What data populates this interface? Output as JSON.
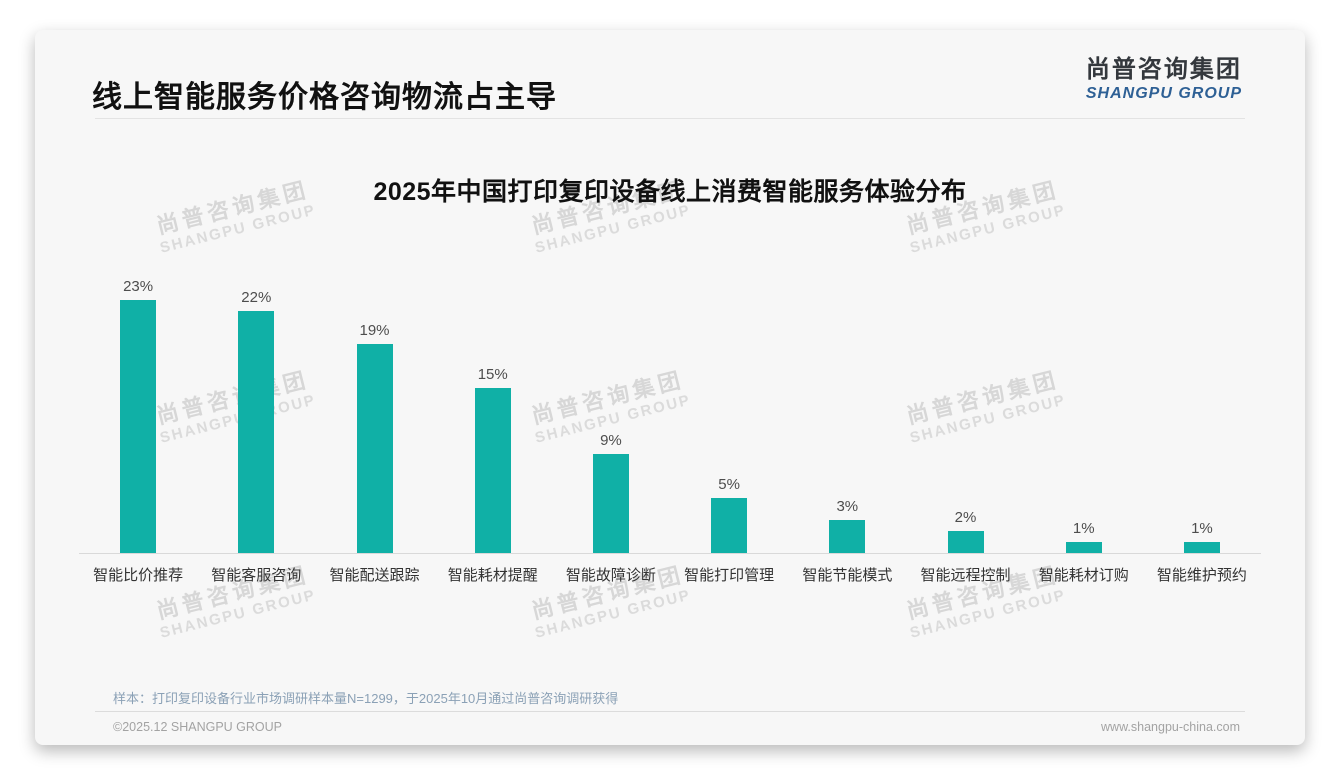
{
  "header": {
    "title": "线上智能服务价格咨询物流占主导"
  },
  "logo": {
    "cn": "尚普咨询集团",
    "en": "SHANGPU GROUP"
  },
  "watermark": {
    "cn": "尚普咨询集团",
    "en": "SHANGPU GROUP"
  },
  "chart_data": {
    "type": "bar",
    "title": "2025年中国打印复印设备线上消费智能服务体验分布",
    "categories": [
      "智能比价推荐",
      "智能客服咨询",
      "智能配送跟踪",
      "智能耗材提醒",
      "智能故障诊断",
      "智能打印管理",
      "智能节能模式",
      "智能远程控制",
      "智能耗材订购",
      "智能维护预约"
    ],
    "values": [
      23,
      22,
      19,
      15,
      9,
      5,
      3,
      2,
      1,
      1
    ],
    "unit": "%",
    "ylim": [
      0,
      25
    ],
    "xlabel": "",
    "ylabel": "",
    "grid": false,
    "legend": false,
    "bar_color": "#10b0a6"
  },
  "note": {
    "text": "样本：打印复印设备行业市场调研样本量N=1299，于2025年10月通过尚普咨询调研获得"
  },
  "footer": {
    "left": "©2025.12 SHANGPU GROUP",
    "right": "www.shangpu-china.com"
  },
  "colors": {
    "bar": "#10b0a6",
    "title_text": "#111111",
    "logo_cn": "#34383d",
    "logo_en": "#2e6095",
    "note_text": "#8ba1b6",
    "watermark": "#d8d8d8",
    "card_bg": "#f7f7f7"
  }
}
